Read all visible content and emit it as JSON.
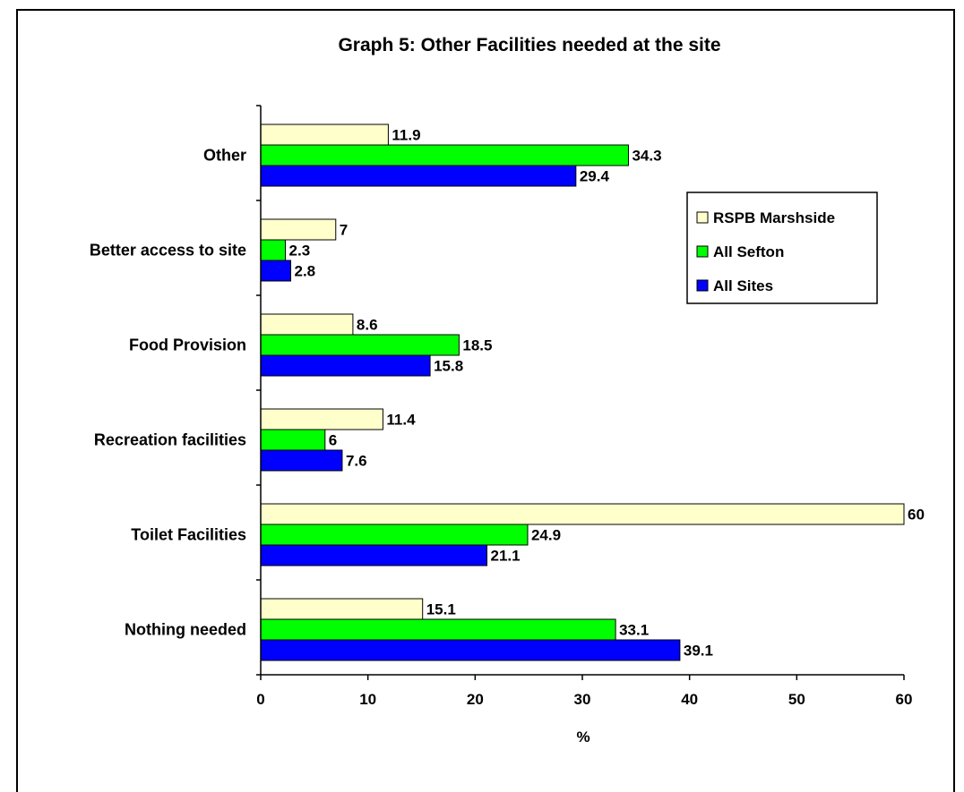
{
  "chart_data": {
    "type": "bar",
    "orientation": "horizontal",
    "title": "Graph 5: Other Facilities needed at the site",
    "xlabel": "%",
    "ylabel": "",
    "xlim": [
      0,
      60
    ],
    "x_ticks": [
      0,
      10,
      20,
      30,
      40,
      50,
      60
    ],
    "categories": [
      "Other",
      "Better access to site",
      "Food Provision",
      "Recreation facilities",
      "Toilet Facilities",
      "Nothing needed"
    ],
    "series": [
      {
        "name": "RSPB Marshside",
        "color": "#FFFFCC",
        "values": [
          11.9,
          7,
          8.6,
          11.4,
          60,
          15.1
        ],
        "labels": [
          "11.9",
          "7",
          "8.6",
          "11.4",
          "60",
          "15.1"
        ]
      },
      {
        "name": "All Sefton",
        "color": "#00FF00",
        "values": [
          34.3,
          2.3,
          18.5,
          6,
          24.9,
          33.1
        ],
        "labels": [
          "34.3",
          "2.3",
          "18.5",
          "6",
          "24.9",
          "33.1"
        ]
      },
      {
        "name": "All Sites",
        "color": "#0000FF",
        "values": [
          29.4,
          2.8,
          15.8,
          7.6,
          21.1,
          39.1
        ],
        "labels": [
          "29.4",
          "2.8",
          "15.8",
          "7.6",
          "21.1",
          "39.1"
        ]
      }
    ],
    "legend": {
      "position": "right",
      "entries": [
        "RSPB Marshside",
        "All Sefton",
        "All Sites"
      ]
    },
    "grid": false
  }
}
